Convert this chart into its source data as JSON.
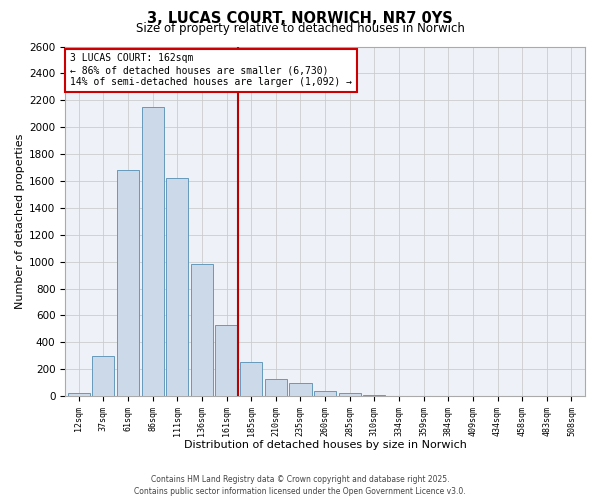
{
  "title": "3, LUCAS COURT, NORWICH, NR7 0YS",
  "subtitle": "Size of property relative to detached houses in Norwich",
  "xlabel": "Distribution of detached houses by size in Norwich",
  "ylabel": "Number of detached properties",
  "bar_labels": [
    "12sqm",
    "37sqm",
    "61sqm",
    "86sqm",
    "111sqm",
    "136sqm",
    "161sqm",
    "185sqm",
    "210sqm",
    "235sqm",
    "260sqm",
    "285sqm",
    "310sqm",
    "334sqm",
    "359sqm",
    "384sqm",
    "409sqm",
    "434sqm",
    "458sqm",
    "483sqm",
    "508sqm"
  ],
  "bar_values": [
    20,
    300,
    1680,
    2150,
    1620,
    980,
    530,
    250,
    130,
    95,
    35,
    20,
    5,
    0,
    0,
    0,
    0,
    0,
    0,
    0,
    0
  ],
  "bar_color": "#ccd9e8",
  "bar_edge_color": "#6699bb",
  "vline_color": "#bb0000",
  "annotation_title": "3 LUCAS COURT: 162sqm",
  "annotation_line1": "← 86% of detached houses are smaller (6,730)",
  "annotation_line2": "14% of semi-detached houses are larger (1,092) →",
  "annotation_box_color": "#ffffff",
  "annotation_box_edge": "#cc0000",
  "ylim_max": 2600,
  "yticks": [
    0,
    200,
    400,
    600,
    800,
    1000,
    1200,
    1400,
    1600,
    1800,
    2000,
    2200,
    2400,
    2600
  ],
  "grid_color": "#cccccc",
  "bg_color": "#eef2f8",
  "footer_line1": "Contains HM Land Registry data © Crown copyright and database right 2025.",
  "footer_line2": "Contains public sector information licensed under the Open Government Licence v3.0."
}
